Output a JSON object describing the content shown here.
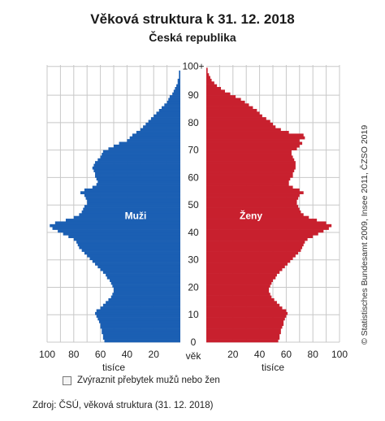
{
  "title": "Věková struktura k 31. 12. 2018",
  "subtitle": "Česká republika",
  "colors": {
    "male": "#1b5fb3",
    "female": "#c8202e",
    "grid": "#c8c8c8"
  },
  "chart_data": {
    "type": "bar",
    "orientation": "population-pyramid",
    "title": "Věková struktura k 31. 12. 2018",
    "subtitle": "Česká republika",
    "y_axis": {
      "label": "věk",
      "ticks": [
        "0",
        "10",
        "20",
        "30",
        "40",
        "50",
        "60",
        "70",
        "80",
        "90",
        "100+"
      ],
      "range": [
        0,
        100
      ]
    },
    "x_axis_left": {
      "label": "tisíce",
      "ticks": [
        "100",
        "80",
        "60",
        "40",
        "20"
      ],
      "range": [
        0,
        100
      ]
    },
    "x_axis_right": {
      "label": "tisíce",
      "ticks": [
        "20",
        "40",
        "60",
        "80",
        "100"
      ],
      "range": [
        0,
        100
      ]
    },
    "grid": true,
    "ages": [
      0,
      1,
      2,
      3,
      4,
      5,
      6,
      7,
      8,
      9,
      10,
      11,
      12,
      13,
      14,
      15,
      16,
      17,
      18,
      19,
      20,
      21,
      22,
      23,
      24,
      25,
      26,
      27,
      28,
      29,
      30,
      31,
      32,
      33,
      34,
      35,
      36,
      37,
      38,
      39,
      40,
      41,
      42,
      43,
      44,
      45,
      46,
      47,
      48,
      49,
      50,
      51,
      52,
      53,
      54,
      55,
      56,
      57,
      58,
      59,
      60,
      61,
      62,
      63,
      64,
      65,
      66,
      67,
      68,
      69,
      70,
      71,
      72,
      73,
      74,
      75,
      76,
      77,
      78,
      79,
      80,
      81,
      82,
      83,
      84,
      85,
      86,
      87,
      88,
      89,
      90,
      91,
      92,
      93,
      94,
      95,
      96,
      97,
      98,
      99,
      100
    ],
    "series": [
      {
        "name": "Muži",
        "side": "left",
        "values": [
          57,
          58,
          58,
          59,
          59,
          60,
          60,
          61,
          62,
          63,
          64,
          63,
          60,
          58,
          56,
          54,
          52,
          51,
          50,
          50,
          51,
          52,
          53,
          55,
          56,
          58,
          60,
          62,
          64,
          66,
          68,
          70,
          72,
          74,
          76,
          77,
          78,
          80,
          84,
          88,
          92,
          96,
          98,
          94,
          86,
          80,
          76,
          74,
          73,
          72,
          70,
          70,
          71,
          72,
          75,
          72,
          66,
          63,
          62,
          63,
          64,
          64,
          65,
          66,
          65,
          64,
          62,
          60,
          59,
          58,
          54,
          50,
          46,
          40,
          38,
          36,
          33,
          30,
          28,
          26,
          24,
          22,
          20,
          18,
          16,
          14,
          12,
          10,
          9,
          8,
          6,
          5,
          4,
          3,
          2,
          2,
          1,
          1,
          1,
          0,
          0
        ]
      },
      {
        "name": "Ženy",
        "side": "right",
        "values": [
          54,
          55,
          55,
          56,
          56,
          57,
          58,
          58,
          59,
          60,
          61,
          60,
          57,
          55,
          53,
          51,
          49,
          48,
          47,
          47,
          48,
          49,
          50,
          52,
          53,
          55,
          57,
          59,
          61,
          63,
          65,
          67,
          69,
          71,
          72,
          73,
          74,
          76,
          80,
          84,
          88,
          92,
          94,
          90,
          83,
          77,
          73,
          71,
          70,
          69,
          68,
          68,
          69,
          70,
          73,
          70,
          65,
          62,
          62,
          63,
          65,
          65,
          66,
          67,
          67,
          67,
          66,
          65,
          64,
          64,
          68,
          70,
          72,
          70,
          74,
          73,
          62,
          56,
          52,
          50,
          48,
          45,
          42,
          40,
          38,
          35,
          32,
          29,
          26,
          22,
          18,
          14,
          11,
          8,
          6,
          4,
          3,
          2,
          1,
          1,
          0
        ]
      }
    ]
  },
  "checkbox": {
    "label": "Zvýraznit přebytek mužů nebo žen",
    "checked": false
  },
  "source": "Zdroj: ČSÚ, věková struktura (31. 12. 2018)",
  "credit": "© Statistisches Bundesamt 2009, Insee 2011, ČZSO 2019"
}
